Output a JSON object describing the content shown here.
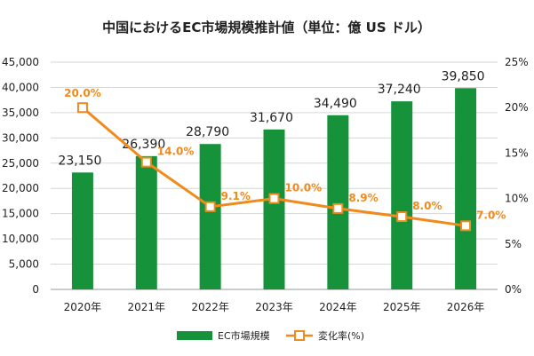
{
  "chart_data": {
    "type": "bar+line",
    "title": "中国におけるEC市場規模推計値（単位：億 US ドル）",
    "categories": [
      "2020年",
      "2021年",
      "2022年",
      "2023年",
      "2024年",
      "2025年",
      "2026年"
    ],
    "series": [
      {
        "name": "EC市場規模",
        "type": "bar",
        "axis": "left",
        "values": [
          23150,
          26390,
          28790,
          31670,
          34490,
          37240,
          39850
        ],
        "labels": [
          "23,150",
          "26,390",
          "28,790",
          "31,670",
          "34,490",
          "37,240",
          "39,850"
        ],
        "color": "#16923a"
      },
      {
        "name": "変化率(%)",
        "type": "line",
        "axis": "right",
        "values": [
          20.0,
          14.0,
          9.1,
          10.0,
          8.9,
          8.0,
          7.0
        ],
        "labels": [
          "20.0%",
          "14.0%",
          "9.1%",
          "10.0%",
          "8.9%",
          "8.0%",
          "7.0%"
        ],
        "color": "#f08a1c"
      }
    ],
    "y_left": {
      "range": [
        0,
        45000
      ],
      "ticks": [
        0,
        5000,
        10000,
        15000,
        20000,
        25000,
        30000,
        35000,
        40000,
        45000
      ],
      "tick_labels": [
        "0",
        "5,000",
        "10,000",
        "15,000",
        "20,000",
        "25,000",
        "30,000",
        "35,000",
        "40,000",
        "45,000"
      ]
    },
    "y_right": {
      "range": [
        0,
        25
      ],
      "ticks": [
        0,
        5,
        10,
        15,
        20,
        25
      ],
      "tick_labels": [
        "0%",
        "5%",
        "10%",
        "15%",
        "20%",
        "25%"
      ]
    },
    "grid": true,
    "legend_position": "bottom"
  }
}
